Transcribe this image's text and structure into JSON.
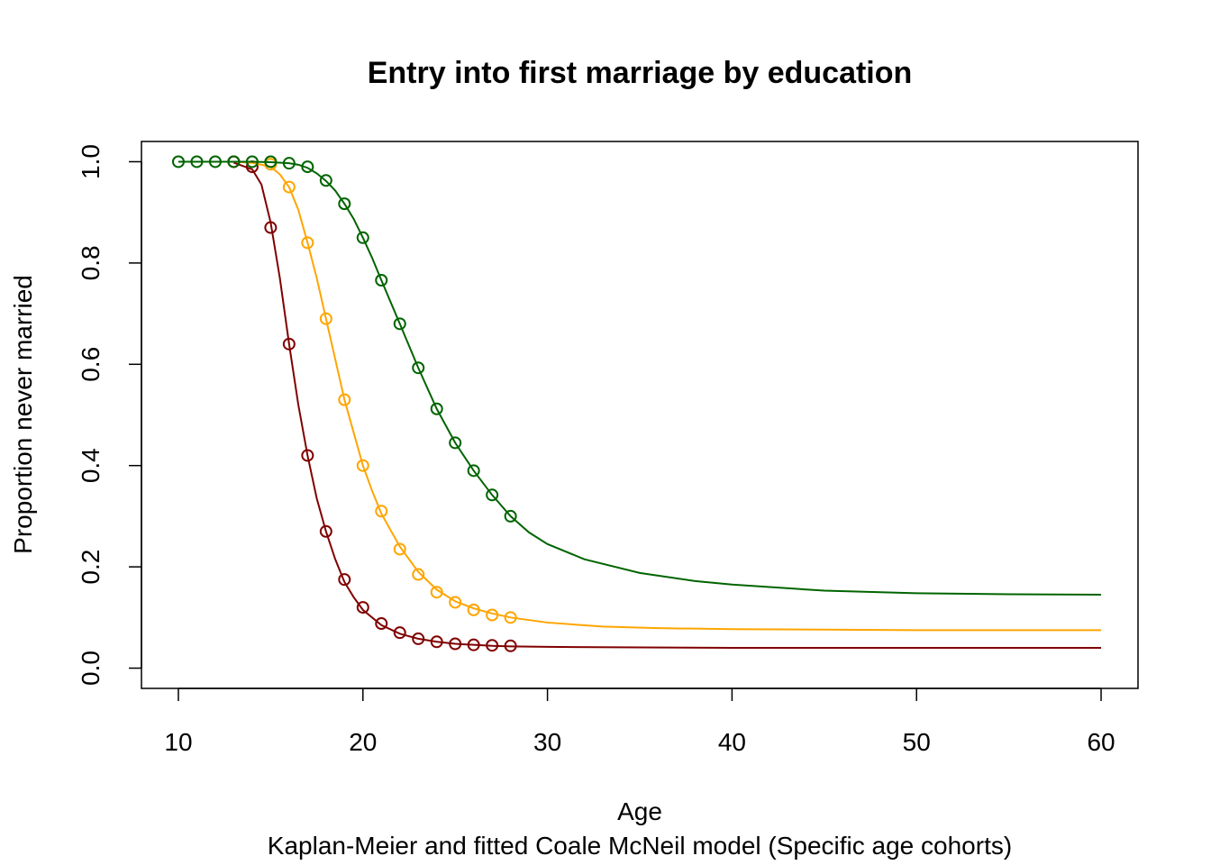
{
  "chart_data": {
    "type": "line",
    "title": "Entry into first marriage by education",
    "xlabel": "Age",
    "ylabel": "Proportion never married",
    "subtitle": "Kaplan-Meier and fitted Coale McNeil model (Specific age cohorts)",
    "xlim": [
      8,
      62
    ],
    "ylim": [
      -0.04,
      1.04
    ],
    "xticks": [
      10,
      20,
      30,
      40,
      50,
      60
    ],
    "yticks": [
      0.0,
      0.2,
      0.4,
      0.6,
      0.8,
      1.0
    ],
    "x_tick_labels": [
      "10",
      "20",
      "30",
      "40",
      "50",
      "60"
    ],
    "y_tick_labels": [
      "0.0",
      "0.2",
      "0.4",
      "0.6",
      "0.8",
      "1.0"
    ],
    "grid": false,
    "legend": "none",
    "series": [
      {
        "color": "#800000",
        "points": {
          "x": [
            13,
            14,
            15,
            16,
            17,
            18,
            19,
            20,
            21,
            22,
            23,
            24,
            25,
            26,
            27,
            28
          ],
          "y": [
            1.0,
            0.99,
            0.87,
            0.64,
            0.42,
            0.27,
            0.175,
            0.12,
            0.088,
            0.07,
            0.058,
            0.052,
            0.048,
            0.046,
            0.045,
            0.044
          ]
        },
        "fitted": {
          "x": [
            13,
            14,
            14.5,
            15,
            15.5,
            16,
            16.5,
            17,
            17.5,
            18,
            18.5,
            19,
            19.5,
            20,
            21,
            22,
            23,
            24,
            25,
            26,
            27,
            28,
            30,
            35,
            40,
            45,
            50,
            55,
            60
          ],
          "y": [
            0.998,
            0.985,
            0.955,
            0.88,
            0.77,
            0.64,
            0.52,
            0.42,
            0.335,
            0.27,
            0.215,
            0.17,
            0.14,
            0.115,
            0.085,
            0.068,
            0.058,
            0.052,
            0.048,
            0.046,
            0.044,
            0.043,
            0.042,
            0.041,
            0.04,
            0.04,
            0.04,
            0.04,
            0.04
          ]
        }
      },
      {
        "color": "#FFA500",
        "points": {
          "x": [
            15,
            16,
            17,
            18,
            19,
            20,
            21,
            22,
            23,
            24,
            25,
            26,
            27,
            28
          ],
          "y": [
            0.995,
            0.95,
            0.84,
            0.69,
            0.53,
            0.4,
            0.31,
            0.235,
            0.185,
            0.15,
            0.13,
            0.115,
            0.105,
            0.1
          ]
        },
        "fitted": {
          "x": [
            10,
            13,
            14,
            15,
            15.5,
            16,
            16.5,
            17,
            17.5,
            18,
            18.5,
            19,
            19.5,
            20,
            20.5,
            21,
            22,
            23,
            24,
            25,
            26,
            27,
            28,
            30,
            33,
            36,
            40,
            45,
            50,
            55,
            60
          ],
          "y": [
            1.0,
            1.0,
            0.998,
            0.99,
            0.975,
            0.95,
            0.905,
            0.84,
            0.77,
            0.69,
            0.61,
            0.53,
            0.465,
            0.4,
            0.35,
            0.305,
            0.24,
            0.19,
            0.155,
            0.132,
            0.118,
            0.108,
            0.1,
            0.09,
            0.082,
            0.079,
            0.077,
            0.076,
            0.075,
            0.075,
            0.075
          ]
        }
      },
      {
        "color": "#006400",
        "points": {
          "x": [
            10,
            11,
            12,
            13,
            14,
            15,
            16,
            17,
            18,
            19,
            20,
            21,
            22,
            23,
            24,
            25,
            26,
            27,
            28
          ],
          "y": [
            1.0,
            1.0,
            1.0,
            1.0,
            1.0,
            1.0,
            0.997,
            0.99,
            0.963,
            0.917,
            0.85,
            0.766,
            0.68,
            0.593,
            0.512,
            0.445,
            0.39,
            0.342,
            0.3
          ]
        },
        "fitted": {
          "x": [
            10,
            14,
            15,
            16,
            16.5,
            17,
            17.5,
            18,
            18.5,
            19,
            19.5,
            20,
            20.5,
            21,
            22,
            23,
            24,
            25,
            26,
            27,
            28,
            29,
            30,
            32,
            35,
            38,
            40,
            45,
            50,
            55,
            60
          ],
          "y": [
            1.0,
            1.0,
            0.999,
            0.997,
            0.994,
            0.988,
            0.977,
            0.962,
            0.943,
            0.917,
            0.887,
            0.85,
            0.81,
            0.766,
            0.68,
            0.593,
            0.512,
            0.445,
            0.39,
            0.342,
            0.3,
            0.268,
            0.245,
            0.215,
            0.188,
            0.172,
            0.165,
            0.153,
            0.148,
            0.146,
            0.145
          ]
        }
      }
    ]
  }
}
